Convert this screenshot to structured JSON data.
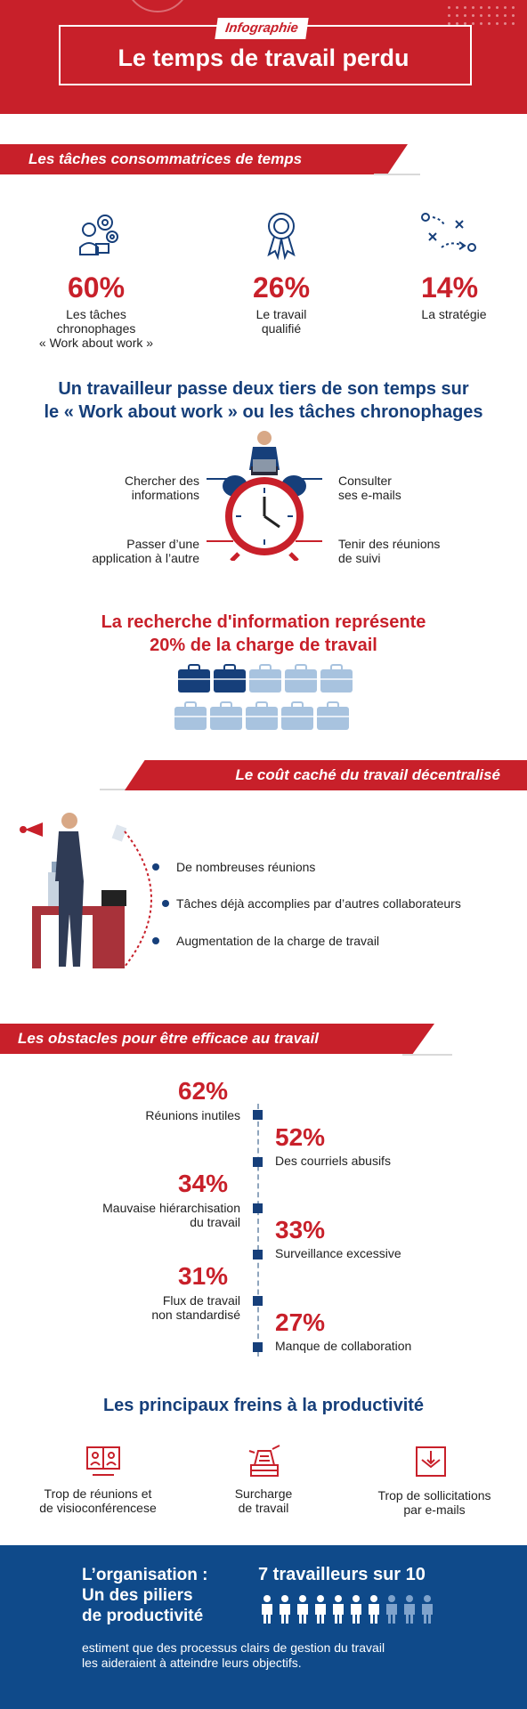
{
  "header": {
    "badge": "Infographie",
    "title": "Le temps de travail perdu"
  },
  "section1": {
    "ribbon": "Les tâches consommatrices de temps",
    "stats": [
      {
        "icon": "gears-worker-icon",
        "pct": "60%",
        "label_lines": [
          "Les tâches",
          "chronophages",
          "« Work about work »"
        ]
      },
      {
        "icon": "award-ribbon-icon",
        "pct": "26%",
        "label_lines": [
          "Le travail",
          "qualifié"
        ]
      },
      {
        "icon": "strategy-play-icon",
        "pct": "14%",
        "label_lines": [
          "La stratégie"
        ]
      }
    ]
  },
  "section2": {
    "heading_lines": [
      "Un travailleur passe deux tiers de son temps sur",
      "le « Work about work » ou les tâches chronophages"
    ],
    "tasks": [
      {
        "lines": [
          "Chercher des",
          "informations"
        ]
      },
      {
        "lines": [
          "Consulter",
          "ses e-mails"
        ]
      },
      {
        "lines": [
          "Passer d’une",
          "application à l’autre"
        ]
      },
      {
        "lines": [
          "Tenir des réunions",
          "de suivi"
        ]
      }
    ]
  },
  "section3": {
    "heading_lines": [
      "La recherche d'information représente",
      "20% de la charge de travail"
    ],
    "filled": 2,
    "total": 10
  },
  "section4": {
    "ribbon": "Le coût caché du travail décentralisé",
    "points": [
      "De nombreuses réunions",
      "Tâches déjà accomplies par d’autres collaborateurs",
      "Augmentation de la charge de travail"
    ]
  },
  "section5": {
    "ribbon": "Les obstacles pour être efficace au travail",
    "items": [
      {
        "pct": "62%",
        "lines": [
          "Réunions inutiles"
        ]
      },
      {
        "pct": "52%",
        "lines": [
          "Des courriels abusifs"
        ]
      },
      {
        "pct": "34%",
        "lines": [
          "Mauvaise hiérarchisation",
          "du travail"
        ]
      },
      {
        "pct": "33%",
        "lines": [
          "Surveillance excessive"
        ]
      },
      {
        "pct": "31%",
        "lines": [
          "Flux de travail",
          "non standardisé"
        ]
      },
      {
        "pct": "27%",
        "lines": [
          "Manque de collaboration"
        ]
      }
    ]
  },
  "section6": {
    "heading": "Les principaux freins à la productivité",
    "items": [
      {
        "icon": "video-meeting-icon",
        "lines": [
          "Trop de réunions et",
          "de visioconférencese"
        ]
      },
      {
        "icon": "paperwork-stack-icon",
        "lines": [
          "Surcharge",
          "de travail"
        ]
      },
      {
        "icon": "email-inbox-icon",
        "lines": [
          "Trop de sollicitations",
          "par e-mails"
        ]
      }
    ]
  },
  "bottom": {
    "org_lines": [
      "L’organisation :",
      "Un des piliers",
      "de productivité"
    ],
    "stat": "7 travailleurs sur 10",
    "filled": 7,
    "total": 10,
    "footer_lines": [
      "estiment que des processus clairs de gestion du travail",
      "les aideraient à atteindre leurs objectifs."
    ]
  },
  "colors": {
    "red": "#c8202a",
    "navy": "#163f7a",
    "light_blue": "#a8c3df",
    "bottom_blue": "#0f4a8a"
  }
}
